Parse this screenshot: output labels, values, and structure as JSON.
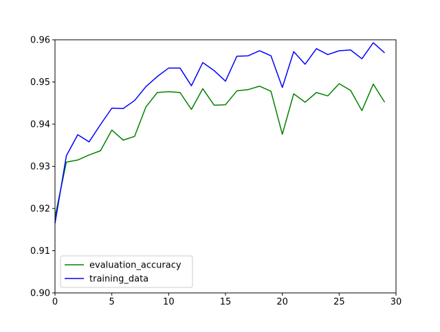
{
  "chart_data": {
    "type": "line",
    "xlim": [
      0,
      30
    ],
    "ylim": [
      0.9,
      0.96
    ],
    "xticks": [
      0,
      5,
      10,
      15,
      20,
      25,
      30
    ],
    "xtick_labels": [
      "0",
      "5",
      "10",
      "15",
      "20",
      "25",
      "30"
    ],
    "yticks": [
      0.9,
      0.91,
      0.92,
      0.93,
      0.94,
      0.95,
      0.96
    ],
    "ytick_labels": [
      "0.90",
      "0.91",
      "0.92",
      "0.93",
      "0.94",
      "0.95",
      "0.96"
    ],
    "grid": false,
    "legend_position": "lower-left",
    "x": [
      0,
      1,
      2,
      3,
      4,
      5,
      6,
      7,
      8,
      9,
      10,
      11,
      12,
      13,
      14,
      15,
      16,
      17,
      18,
      19,
      20,
      21,
      22,
      23,
      24,
      25,
      26,
      27,
      28,
      29
    ],
    "series": [
      {
        "name": "evaluation_accuracy",
        "color": "#008000",
        "values": [
          0.918,
          0.931,
          0.9315,
          0.9327,
          0.9337,
          0.9386,
          0.9362,
          0.9371,
          0.9441,
          0.9475,
          0.9477,
          0.9475,
          0.9435,
          0.9484,
          0.9445,
          0.9446,
          0.9479,
          0.9482,
          0.949,
          0.9478,
          0.9376,
          0.9472,
          0.9452,
          0.9475,
          0.9467,
          0.9496,
          0.948,
          0.9432,
          0.9495,
          0.9452
        ]
      },
      {
        "name": "training_data",
        "color": "#0000ff",
        "values": [
          0.9165,
          0.9325,
          0.9375,
          0.9358,
          0.9399,
          0.9438,
          0.9437,
          0.9456,
          0.9489,
          0.9513,
          0.9533,
          0.9533,
          0.9491,
          0.9546,
          0.9527,
          0.9502,
          0.9561,
          0.9562,
          0.9574,
          0.9562,
          0.9487,
          0.9572,
          0.9542,
          0.9579,
          0.9565,
          0.9574,
          0.9576,
          0.9555,
          0.9593,
          0.9569
        ]
      }
    ]
  }
}
